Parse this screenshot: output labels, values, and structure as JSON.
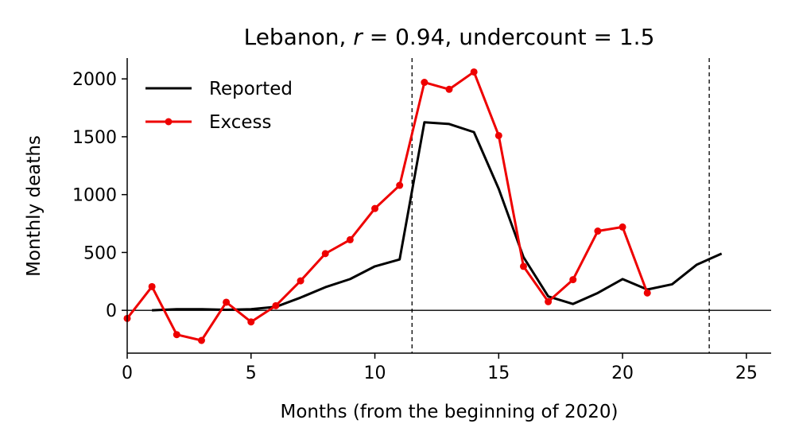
{
  "chart_data": {
    "type": "line",
    "title_prefix": "Lebanon, ",
    "title_r_symbol": "r",
    "title_r_value": " = 0.94, undercount = 1.5",
    "xlabel": "Months (from the beginning of 2020)",
    "ylabel": "Monthly deaths",
    "xlim": [
      0,
      26
    ],
    "ylim": [
      -370,
      2180
    ],
    "x_ticks": [
      0,
      5,
      10,
      15,
      20,
      25
    ],
    "y_ticks": [
      0,
      500,
      1000,
      1500,
      2000
    ],
    "x_tick_labels": [
      "0",
      "5",
      "10",
      "15",
      "20",
      "25"
    ],
    "y_tick_labels": [
      "0",
      "500",
      "1000",
      "1500",
      "2000"
    ],
    "vertical_lines": [
      11.5,
      23.5
    ],
    "horizontal_line": 0,
    "legend_position": "top-left",
    "series": [
      {
        "name": "Reported",
        "color": "#000000",
        "marker": false,
        "x": [
          1,
          2,
          3,
          4,
          5,
          6,
          7,
          8,
          9,
          10,
          11,
          12,
          13,
          14,
          15,
          16,
          17,
          18,
          19,
          20,
          21,
          22,
          23,
          24
        ],
        "values": [
          0,
          10,
          10,
          5,
          10,
          30,
          110,
          200,
          270,
          380,
          440,
          1625,
          1610,
          1540,
          1050,
          460,
          120,
          55,
          150,
          270,
          180,
          225,
          395,
          490
        ]
      },
      {
        "name": "Excess",
        "color": "#ee0000",
        "marker": true,
        "x": [
          0,
          1,
          2,
          3,
          4,
          5,
          6,
          7,
          8,
          9,
          10,
          11,
          12,
          13,
          14,
          15,
          16,
          17,
          18,
          19,
          20,
          21
        ],
        "values": [
          -70,
          205,
          -210,
          -260,
          70,
          -100,
          40,
          255,
          490,
          610,
          880,
          1080,
          1970,
          1910,
          2060,
          1510,
          380,
          75,
          265,
          685,
          720,
          150
        ]
      }
    ]
  }
}
